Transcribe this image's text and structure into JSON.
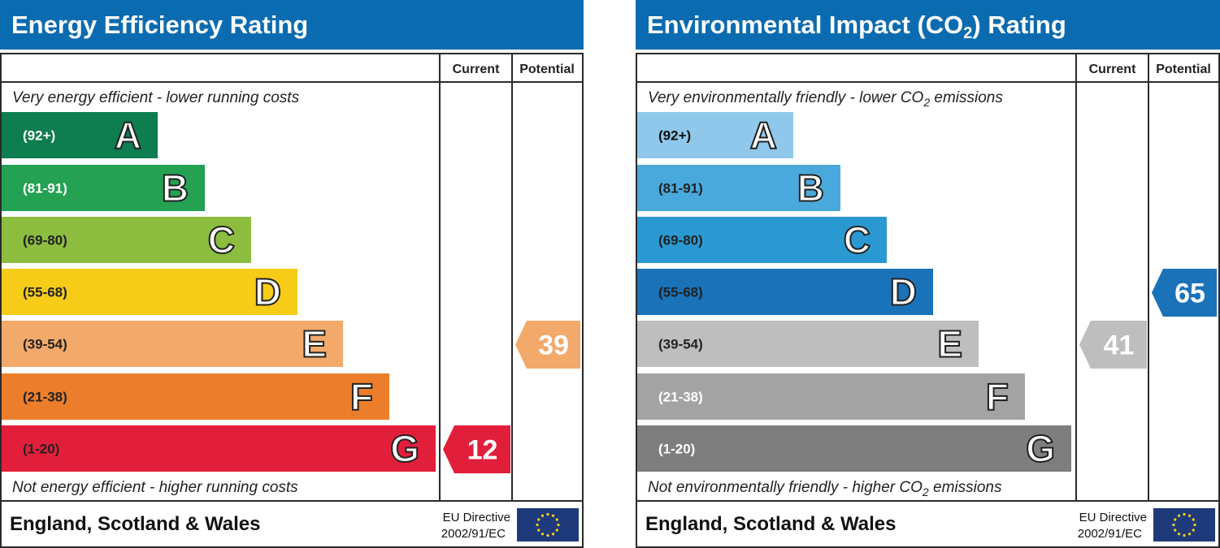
{
  "panels": [
    {
      "id": "energy",
      "title": "Energy Efficiency Rating",
      "title_co2_subscript": false,
      "col_current": "Current",
      "col_potential": "Potential",
      "top_note": "Very energy efficient - lower running costs",
      "bottom_note": "Not energy efficient - higher running costs",
      "footer_region": "England, Scotland & Wales",
      "footer_directive_line1": "EU Directive",
      "footer_directive_line2": "2002/91/EC",
      "bands": [
        {
          "range": "(92+)",
          "letter": "A",
          "color": "#0e7d4f",
          "text_color": "#ffffff"
        },
        {
          "range": "(81-91)",
          "letter": "B",
          "color": "#24a152",
          "text_color": "#ffffff"
        },
        {
          "range": "(69-80)",
          "letter": "C",
          "color": "#8dbd3f",
          "text_color": "#222222"
        },
        {
          "range": "(55-68)",
          "letter": "D",
          "color": "#f6cc18",
          "text_color": "#222222"
        },
        {
          "range": "(39-54)",
          "letter": "E",
          "color": "#f2a96a",
          "text_color": "#222222"
        },
        {
          "range": "(21-38)",
          "letter": "F",
          "color": "#ec7e2b",
          "text_color": "#222222"
        },
        {
          "range": "(1-20)",
          "letter": "G",
          "color": "#e21f3b",
          "text_color": "#222222"
        }
      ],
      "current": {
        "value": "12",
        "band": "G",
        "color": "#e21f3b"
      },
      "potential": {
        "value": "39",
        "band": "E",
        "color": "#f2a96a"
      }
    },
    {
      "id": "co2",
      "title_prefix": "Environmental Impact (CO",
      "title_sub": "2",
      "title_suffix": ") Rating",
      "col_current": "Current",
      "col_potential": "Potential",
      "top_note_prefix": "Very environmentally friendly - lower CO",
      "top_note_sub": "2",
      "top_note_suffix": " emissions",
      "bottom_note_prefix": "Not environmentally friendly - higher CO",
      "bottom_note_sub": "2",
      "bottom_note_suffix": " emissions",
      "footer_region": "England, Scotland & Wales",
      "footer_directive_line1": "EU Directive",
      "footer_directive_line2": "2002/91/EC",
      "bands": [
        {
          "range": "(92+)",
          "letter": "A",
          "color": "#8fc8ea",
          "text_color": "#111111"
        },
        {
          "range": "(81-91)",
          "letter": "B",
          "color": "#4aa9dc",
          "text_color": "#222222"
        },
        {
          "range": "(69-80)",
          "letter": "C",
          "color": "#2a99d2",
          "text_color": "#222222"
        },
        {
          "range": "(55-68)",
          "letter": "D",
          "color": "#1a72b8",
          "text_color": "#222222"
        },
        {
          "range": "(39-54)",
          "letter": "E",
          "color": "#bebebe",
          "text_color": "#222222"
        },
        {
          "range": "(21-38)",
          "letter": "F",
          "color": "#a3a3a3",
          "text_color": "#ffffff"
        },
        {
          "range": "(1-20)",
          "letter": "G",
          "color": "#7e7e7e",
          "text_color": "#ffffff"
        }
      ],
      "current": {
        "value": "41",
        "band": "E",
        "color": "#bebebe"
      },
      "potential": {
        "value": "65",
        "band": "D",
        "color": "#1a72b8"
      }
    }
  ],
  "chart_data": [
    {
      "type": "bar",
      "title": "Energy Efficiency Rating",
      "categories": [
        "A",
        "B",
        "C",
        "D",
        "E",
        "F",
        "G"
      ],
      "ranges": [
        "(92+)",
        "(81-91)",
        "(69-80)",
        "(55-68)",
        "(39-54)",
        "(21-38)",
        "(1-20)"
      ],
      "current": 12,
      "potential": 39
    },
    {
      "type": "bar",
      "title": "Environmental Impact (CO2) Rating",
      "categories": [
        "A",
        "B",
        "C",
        "D",
        "E",
        "F",
        "G"
      ],
      "ranges": [
        "(92+)",
        "(81-91)",
        "(69-80)",
        "(55-68)",
        "(39-54)",
        "(21-38)",
        "(1-20)"
      ],
      "current": 41,
      "potential": 65
    }
  ]
}
